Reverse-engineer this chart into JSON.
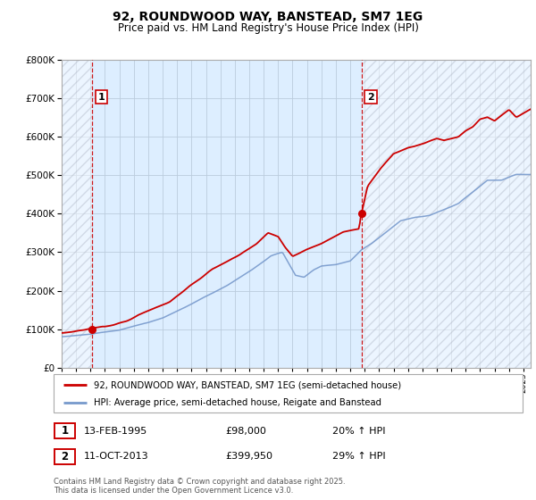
{
  "title": "92, ROUNDWOOD WAY, BANSTEAD, SM7 1EG",
  "subtitle": "Price paid vs. HM Land Registry's House Price Index (HPI)",
  "ylim": [
    0,
    800000
  ],
  "yticks": [
    0,
    100000,
    200000,
    300000,
    400000,
    500000,
    600000,
    700000,
    800000
  ],
  "sale1_date": 1995.1,
  "sale1_price": 98000,
  "sale2_date": 2013.78,
  "sale2_price": 399950,
  "red_line_color": "#cc0000",
  "blue_line_color": "#7799cc",
  "bg_color": "#ddeeff",
  "grid_color": "#bbccdd",
  "legend_label_red": "92, ROUNDWOOD WAY, BANSTEAD, SM7 1EG (semi-detached house)",
  "legend_label_blue": "HPI: Average price, semi-detached house, Reigate and Banstead",
  "annotation1_date": "13-FEB-1995",
  "annotation1_price": "£98,000",
  "annotation1_hpi": "20% ↑ HPI",
  "annotation2_date": "11-OCT-2013",
  "annotation2_price": "£399,950",
  "annotation2_hpi": "29% ↑ HPI",
  "footnote": "Contains HM Land Registry data © Crown copyright and database right 2025.\nThis data is licensed under the Open Government Licence v3.0.",
  "xmin": 1993,
  "xmax": 2025.5
}
